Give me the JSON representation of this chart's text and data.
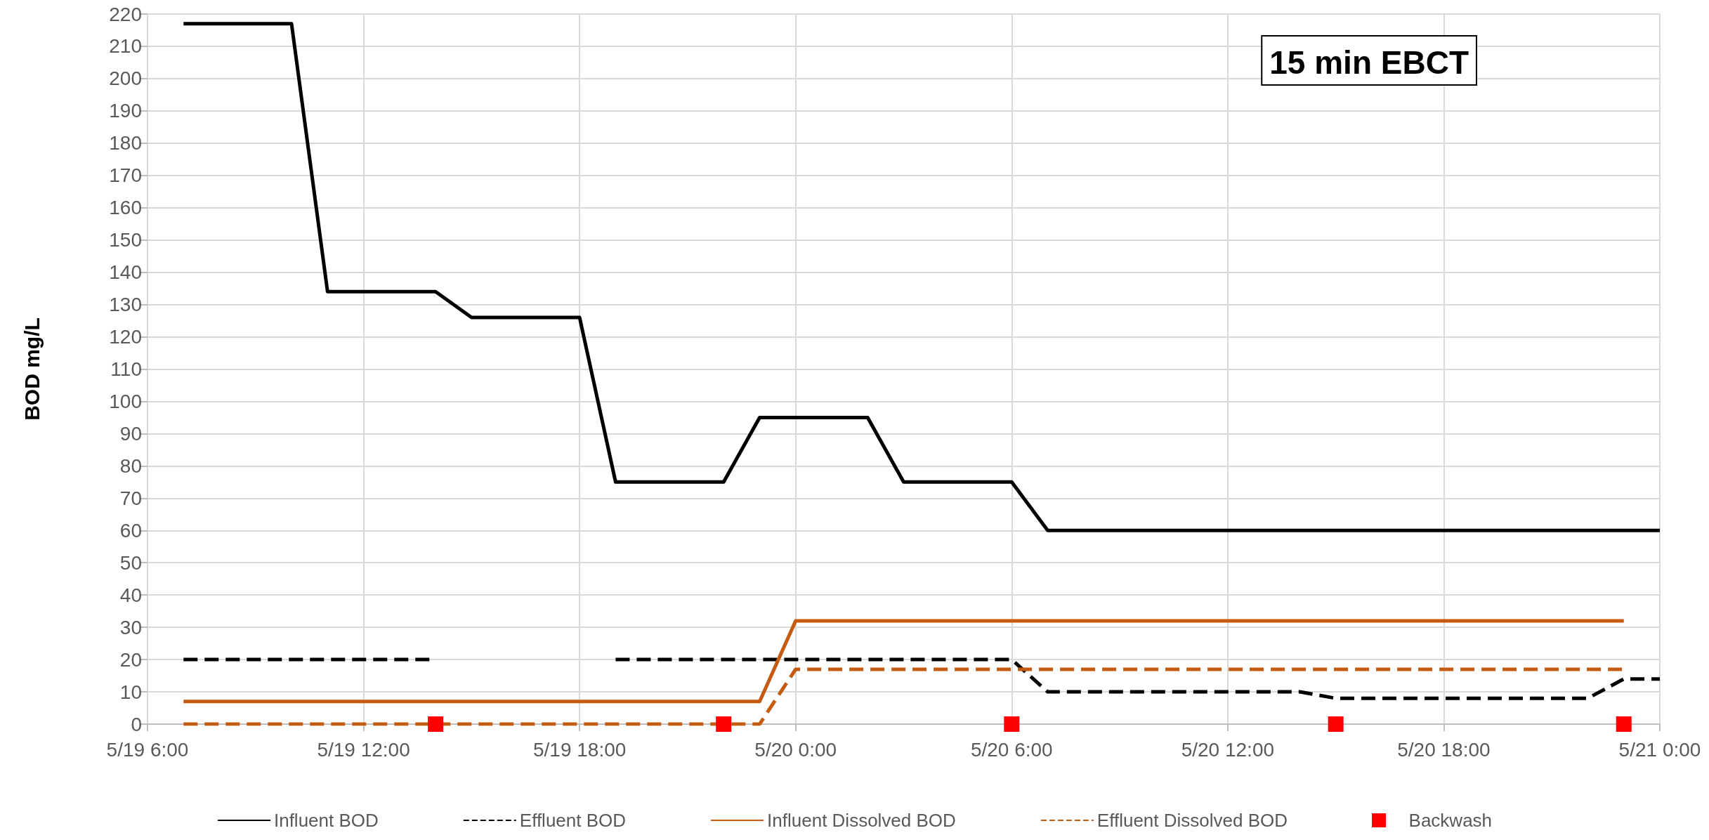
{
  "chart_data": {
    "type": "line",
    "ylabel": "BOD mg/L",
    "annotations": [
      "15 min EBCT"
    ],
    "xlim": [
      "--05-19T06:00",
      "--05-21T00:00"
    ],
    "xticks": [
      {
        "value": "--05-19T06:00",
        "label": "5/19 6:00"
      },
      {
        "value": "--05-19T12:00",
        "label": "5/19 12:00"
      },
      {
        "value": "--05-19T18:00",
        "label": "5/19 18:00"
      },
      {
        "value": "--05-20T00:00",
        "label": "5/20 0:00"
      },
      {
        "value": "--05-20T06:00",
        "label": "5/20 6:00"
      },
      {
        "value": "--05-20T12:00",
        "label": "5/20 12:00"
      },
      {
        "value": "--05-20T18:00",
        "label": "5/20 18:00"
      },
      {
        "value": "--05-21T00:00",
        "label": "5/21 0:00"
      }
    ],
    "ylim": [
      0,
      220
    ],
    "yticks": [
      0,
      10,
      20,
      30,
      40,
      50,
      60,
      70,
      80,
      90,
      100,
      110,
      120,
      130,
      140,
      150,
      160,
      170,
      180,
      190,
      200,
      210,
      220
    ],
    "grid": true,
    "legend": "bottom",
    "marker": "none",
    "series": [
      {
        "name": "Influent BOD",
        "color": "#000000",
        "line_style": "solid",
        "x": [
          "--05-19T07:00",
          "--05-19T10:00",
          "--05-19T11:00",
          "--05-19T14:00",
          "--05-19T15:00",
          "--05-19T18:00",
          "--05-19T19:00",
          "--05-19T22:00",
          "--05-19T23:00",
          "--05-20T02:00",
          "--05-20T03:00",
          "--05-20T06:00",
          "--05-20T07:00",
          "--05-21T00:00"
        ],
        "values": [
          217,
          217,
          134,
          134,
          126,
          126,
          75,
          75,
          95,
          95,
          75,
          75,
          60,
          60
        ]
      },
      {
        "name": "Effluent BOD",
        "color": "#000000",
        "line_style": "dashed",
        "x": [
          "--05-19T07:00",
          "--05-19T14:00",
          "--05-19T16:00",
          "--05-19T19:00",
          "--05-20T06:00",
          "--05-20T07:00",
          "--05-20T14:00",
          "--05-20T15:00",
          "--05-20T22:00",
          "--05-20T23:00",
          "--05-21T00:00"
        ],
        "values": [
          20,
          20,
          null,
          20,
          20,
          10,
          10,
          8,
          8,
          14,
          14
        ]
      },
      {
        "name": "Influent Dissolved BOD",
        "color": "#c55a11",
        "line_style": "solid",
        "x": [
          "--05-19T07:00",
          "--05-19T23:00",
          "--05-20T00:00",
          "--05-20T23:00"
        ],
        "values": [
          7,
          7,
          32,
          32
        ]
      },
      {
        "name": "Effluent Dissolved BOD",
        "color": "#c55a11",
        "line_style": "dashed",
        "x": [
          "--05-19T07:00",
          "--05-19T23:00",
          "--05-20T00:00",
          "--05-20T23:00"
        ],
        "values": [
          0,
          0,
          17,
          17
        ]
      },
      {
        "name": "Backwash",
        "type": "scatter",
        "marker": "square",
        "color": "#ff0000",
        "x": [
          "--05-19T14:00",
          "--05-19T22:00",
          "--05-20T06:00",
          "--05-20T15:00",
          "--05-20T23:00"
        ],
        "values": [
          0,
          0,
          0,
          0,
          0
        ]
      }
    ]
  }
}
